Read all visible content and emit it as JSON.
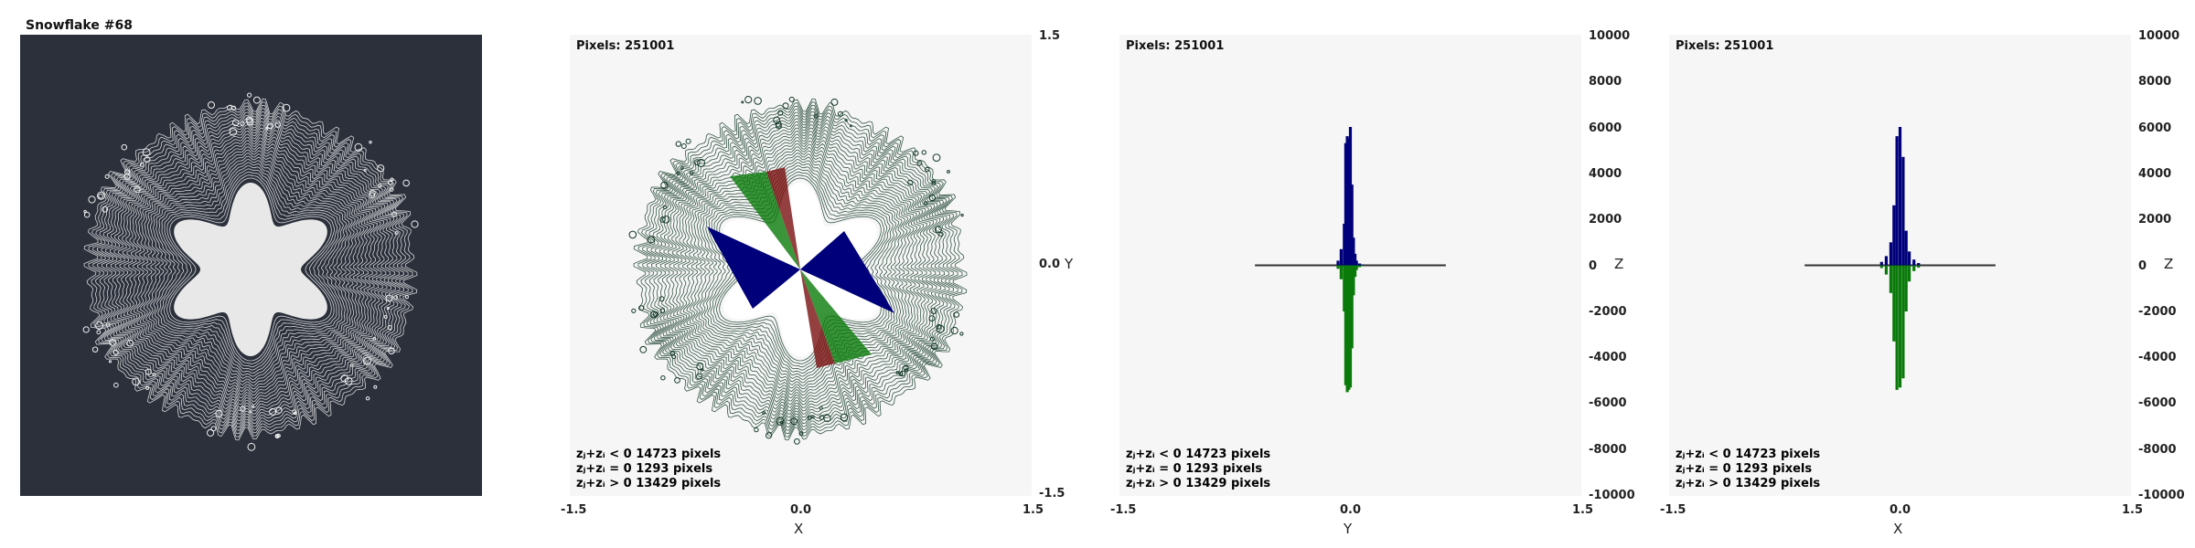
{
  "title": "Snowflake #68",
  "colors": {
    "frame_bg": "#2b303b",
    "plot_bg": "#f6f6f6",
    "snow_line": "#f2f2f2",
    "neg": "#0a7a0a",
    "zero": "#7a1010",
    "pos": "#00007a"
  },
  "legend": [
    {
      "text": "zⱼ+zᵢ < 0  14723 pixels",
      "color": "#0a7a0a"
    },
    {
      "text": "zⱼ+zᵢ = 0  1293 pixels",
      "color": "#7a1010"
    },
    {
      "text": "zⱼ+zᵢ > 0  13429 pixels",
      "color": "#00007a"
    }
  ],
  "panels": [
    {
      "pixels": "Pixels: 251001",
      "x_ticks": [
        "-1.5",
        "0.0",
        "1.5"
      ],
      "xlabel": "X",
      "y_ticks": [
        "1.5",
        "0.0",
        "-1.5"
      ],
      "ylabel": "Y"
    },
    {
      "pixels": "Pixels: 251001",
      "x_ticks": [
        "-1.5",
        "0.0",
        "1.5"
      ],
      "xlabel": "Y",
      "y_ticks": [
        "10000",
        "8000",
        "6000",
        "4000",
        "2000",
        "0",
        "-2000",
        "-4000",
        "-6000",
        "-8000",
        "-10000"
      ],
      "ylabel": "Z"
    },
    {
      "pixels": "Pixels: 251001",
      "x_ticks": [
        "-1.5",
        "0.0",
        "1.5"
      ],
      "xlabel": "X",
      "y_ticks": [
        "10000",
        "8000",
        "6000",
        "4000",
        "2000",
        "0",
        "-2000",
        "-4000",
        "-6000",
        "-8000",
        "-10000"
      ],
      "ylabel": "Z"
    }
  ],
  "chart_data": [
    {
      "type": "scatter",
      "title": "Snowflake #68",
      "description_visible": "white six-armed snowflake fractal on dark background",
      "xlim": [
        -1.5,
        1.5
      ],
      "ylim": [
        -1.5,
        1.5
      ]
    },
    {
      "type": "scatter",
      "xlabel": "X",
      "ylabel": "Y",
      "xlim": [
        -1.5,
        1.5
      ],
      "ylim": [
        -1.5,
        1.5
      ],
      "series": [
        {
          "name": "zⱼ+zᵢ < 0",
          "count": 14723
        },
        {
          "name": "zⱼ+zᵢ = 0",
          "count": 1293
        },
        {
          "name": "zⱼ+zᵢ > 0",
          "count": 13429
        }
      ]
    },
    {
      "type": "bar",
      "xlabel": "Y",
      "ylabel": "Z",
      "xlim": [
        -1.5,
        1.5
      ],
      "ylim": [
        -10000,
        10000
      ],
      "x": [
        -0.08,
        -0.06,
        -0.04,
        -0.03,
        -0.02,
        -0.01,
        0.0,
        0.01,
        0.02,
        0.03,
        0.04,
        0.06,
        0.08
      ],
      "series": [
        {
          "name": "zⱼ+zᵢ > 0",
          "values": [
            200,
            700,
            1800,
            5300,
            5600,
            5500,
            6000,
            3500,
            1200,
            500,
            200,
            80,
            30
          ]
        },
        {
          "name": "zⱼ+zᵢ < 0",
          "values": [
            -150,
            -600,
            -2000,
            -5200,
            -5500,
            -5400,
            -5300,
            -3600,
            -1300,
            -500,
            -200,
            -80,
            -30
          ]
        }
      ]
    },
    {
      "type": "bar",
      "xlabel": "X",
      "ylabel": "Z",
      "xlim": [
        -1.5,
        1.5
      ],
      "ylim": [
        -10000,
        10000
      ],
      "x": [
        -0.12,
        -0.09,
        -0.06,
        -0.04,
        -0.02,
        0.0,
        0.02,
        0.04,
        0.06,
        0.09,
        0.12
      ],
      "series": [
        {
          "name": "zⱼ+zᵢ > 0",
          "values": [
            150,
            400,
            1000,
            2600,
            5600,
            6000,
            4700,
            1500,
            600,
            250,
            100
          ]
        },
        {
          "name": "zⱼ+zᵢ < 0",
          "values": [
            -120,
            -400,
            -1200,
            -3300,
            -5400,
            -5300,
            -4900,
            -2000,
            -700,
            -250,
            -100
          ]
        }
      ]
    }
  ]
}
